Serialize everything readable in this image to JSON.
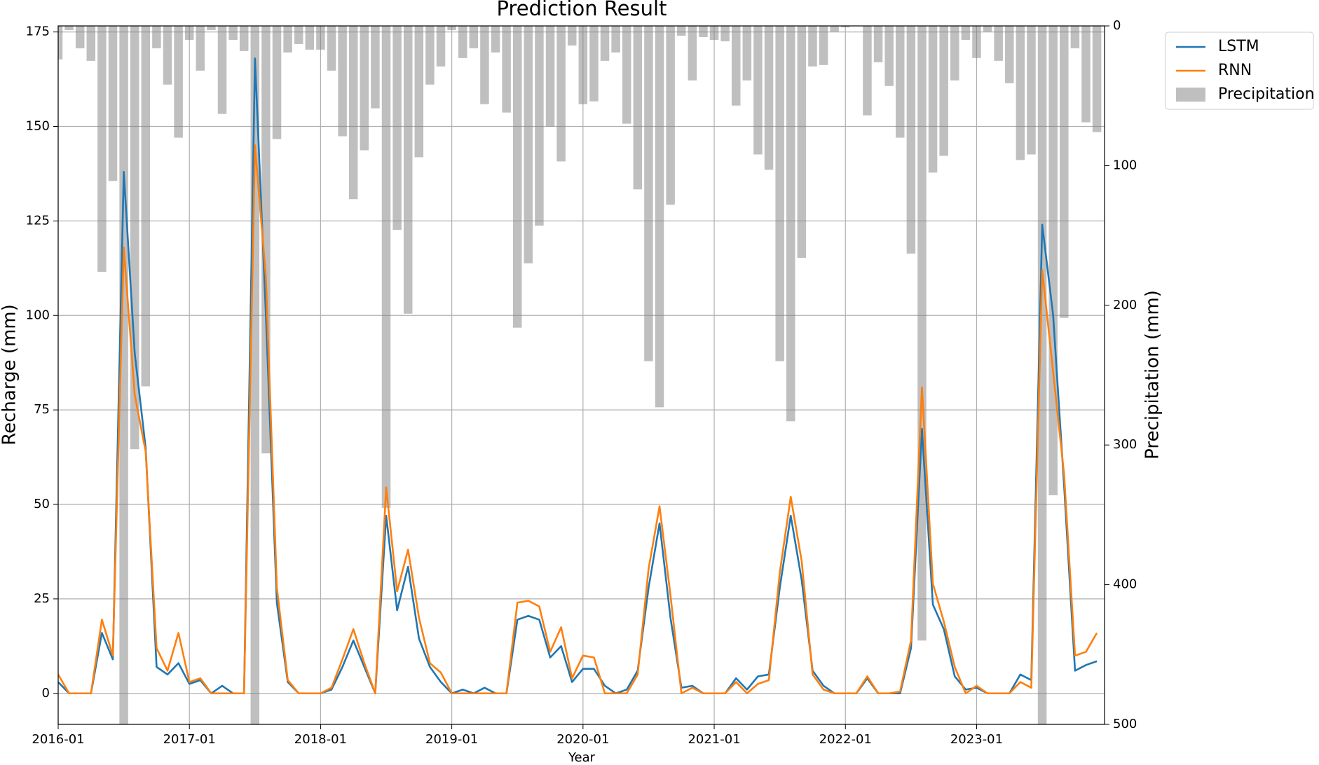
{
  "chart_data": {
    "type": "line",
    "title": "Prediction Result",
    "x_label": "Year",
    "y_label": "Recharge (mm)",
    "y2_label": "Precipitation (mm)",
    "x": [
      "2016-01",
      "2016-02",
      "2016-03",
      "2016-04",
      "2016-05",
      "2016-06",
      "2016-07",
      "2016-08",
      "2016-09",
      "2016-10",
      "2016-11",
      "2016-12",
      "2017-01",
      "2017-02",
      "2017-03",
      "2017-04",
      "2017-05",
      "2017-06",
      "2017-07",
      "2017-08",
      "2017-09",
      "2017-10",
      "2017-11",
      "2017-12",
      "2018-01",
      "2018-02",
      "2018-03",
      "2018-04",
      "2018-05",
      "2018-06",
      "2018-07",
      "2018-08",
      "2018-09",
      "2018-10",
      "2018-11",
      "2018-12",
      "2019-01",
      "2019-02",
      "2019-03",
      "2019-04",
      "2019-05",
      "2019-06",
      "2019-07",
      "2019-08",
      "2019-09",
      "2019-10",
      "2019-11",
      "2019-12",
      "2020-01",
      "2020-02",
      "2020-03",
      "2020-04",
      "2020-05",
      "2020-06",
      "2020-07",
      "2020-08",
      "2020-09",
      "2020-10",
      "2020-11",
      "2020-12",
      "2021-01",
      "2021-02",
      "2021-03",
      "2021-04",
      "2021-05",
      "2021-06",
      "2021-07",
      "2021-08",
      "2021-09",
      "2021-10",
      "2021-11",
      "2021-12",
      "2022-01",
      "2022-02",
      "2022-03",
      "2022-04",
      "2022-05",
      "2022-06",
      "2022-07",
      "2022-08",
      "2022-09",
      "2022-10",
      "2022-11",
      "2022-12",
      "2023-01",
      "2023-02",
      "2023-03",
      "2023-04",
      "2023-05",
      "2023-06",
      "2023-07",
      "2023-08",
      "2023-09",
      "2023-10",
      "2023-11",
      "2023-12"
    ],
    "xticks": [
      "2016-01",
      "2017-01",
      "2018-01",
      "2019-01",
      "2020-01",
      "2021-01",
      "2022-01",
      "2023-01"
    ],
    "ylim": [
      -8.2,
      176.6
    ],
    "yticks": [
      0,
      25,
      50,
      75,
      100,
      125,
      150,
      175
    ],
    "y2lim": [
      500,
      0
    ],
    "y2ticks": [
      0,
      100,
      200,
      300,
      400,
      500
    ],
    "grid": true,
    "legend": "outside upper right",
    "series": [
      {
        "name": "LSTM",
        "type": "line",
        "color": "#1f77b4",
        "values": [
          3,
          0,
          0,
          0,
          16,
          9,
          138,
          90,
          65,
          7,
          5,
          8,
          2.5,
          3.5,
          0,
          2,
          0,
          0,
          168,
          100,
          24,
          3,
          0,
          0,
          0,
          1,
          7,
          14,
          7,
          0,
          47,
          22,
          33.5,
          14.5,
          7,
          3,
          0,
          1,
          0,
          1.5,
          0,
          0,
          19.5,
          20.5,
          19.5,
          9.5,
          12.5,
          3,
          6.5,
          6.5,
          2,
          0,
          1,
          6,
          28,
          45,
          20,
          1.5,
          2,
          0,
          0,
          0,
          4,
          1,
          4.5,
          5,
          28,
          47,
          30,
          6,
          2,
          0,
          0,
          0,
          4,
          0,
          0,
          0,
          12,
          70,
          23.5,
          17,
          4.5,
          1,
          1.5,
          0,
          0,
          0,
          5,
          3.5,
          124,
          100,
          55,
          6,
          7.5,
          8.5
        ]
      },
      {
        "name": "RNN",
        "type": "line",
        "color": "#ff7f0e",
        "values": [
          5,
          0,
          0,
          0,
          19.5,
          10,
          118,
          79,
          64,
          12,
          6,
          16,
          3,
          4,
          0,
          0,
          0,
          0,
          145,
          110,
          28,
          3.5,
          0,
          0,
          0,
          1.5,
          9,
          17,
          8,
          0,
          54.5,
          27,
          38,
          20,
          8,
          5.5,
          0,
          0,
          0,
          0,
          0,
          0,
          24,
          24.5,
          23,
          11,
          17.5,
          4,
          10,
          9.5,
          0,
          0,
          0,
          5,
          33,
          49.5,
          26,
          0,
          1.5,
          0,
          0,
          0,
          3,
          0,
          2.5,
          3.5,
          32,
          52,
          35,
          5,
          1,
          0,
          0,
          0,
          4.5,
          0,
          0,
          0.5,
          14,
          81,
          29,
          19,
          7,
          0,
          2,
          0,
          0,
          0,
          3,
          1.5,
          112,
          85,
          58,
          10,
          11,
          16
        ]
      },
      {
        "name": "Precipitation",
        "type": "bar",
        "axis": "y2",
        "color": "#808080",
        "values": [
          24,
          3,
          16,
          25,
          176,
          111,
          510,
          303,
          258,
          16,
          42,
          80,
          10,
          32,
          3,
          63,
          10,
          18,
          510,
          306,
          81,
          19,
          13,
          17,
          17,
          32,
          79,
          124,
          89,
          59,
          345,
          146,
          206,
          94,
          42,
          29,
          3,
          23,
          16,
          56,
          19,
          62,
          216,
          170,
          143,
          72,
          97,
          14,
          56,
          54,
          25,
          19,
          70,
          117,
          240,
          273,
          128,
          7,
          39,
          8,
          10,
          11,
          57,
          39,
          92,
          103,
          240,
          283,
          166,
          29,
          28,
          4,
          1,
          0,
          64,
          26,
          43,
          80,
          163,
          440,
          105,
          93,
          39,
          10,
          23,
          4,
          25,
          41,
          96,
          92,
          510,
          336,
          209,
          16,
          69,
          76
        ]
      }
    ]
  }
}
